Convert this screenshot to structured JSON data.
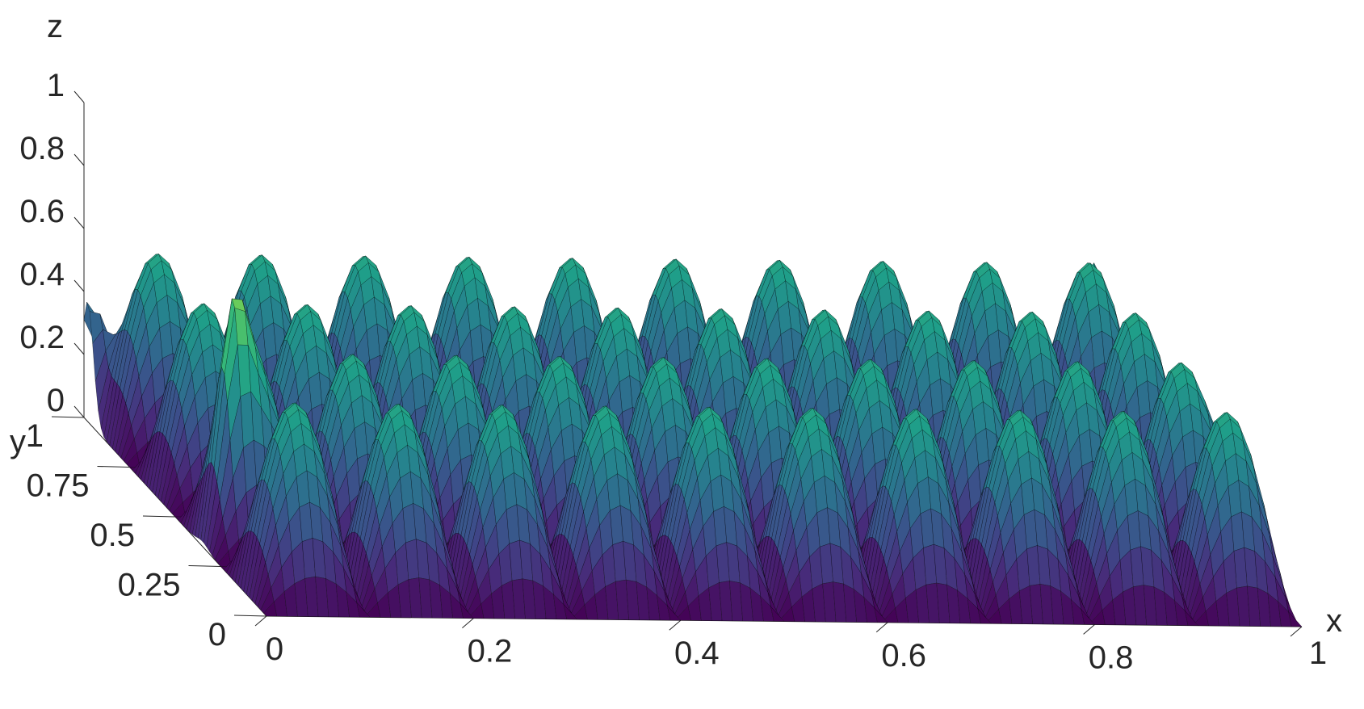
{
  "chart_data": {
    "type": "surface",
    "xlabel": "x",
    "ylabel": "y",
    "zlabel": "z",
    "xlim": [
      0,
      1
    ],
    "ylim": [
      0,
      1
    ],
    "zlim": [
      0,
      1
    ],
    "x_ticks": [
      "0",
      "0.2",
      "0.4",
      "0.6",
      "0.8",
      "1"
    ],
    "y_ticks": [
      "0",
      "0.25",
      "0.5",
      "0.75",
      "1"
    ],
    "z_ticks": [
      "0",
      "0.2",
      "0.4",
      "0.6",
      "0.8",
      "1"
    ],
    "colormap": "viridis",
    "edgecolor": "#000000",
    "x_lobes": 10,
    "y_lobes": 4,
    "typical_peak": 0.6
  }
}
